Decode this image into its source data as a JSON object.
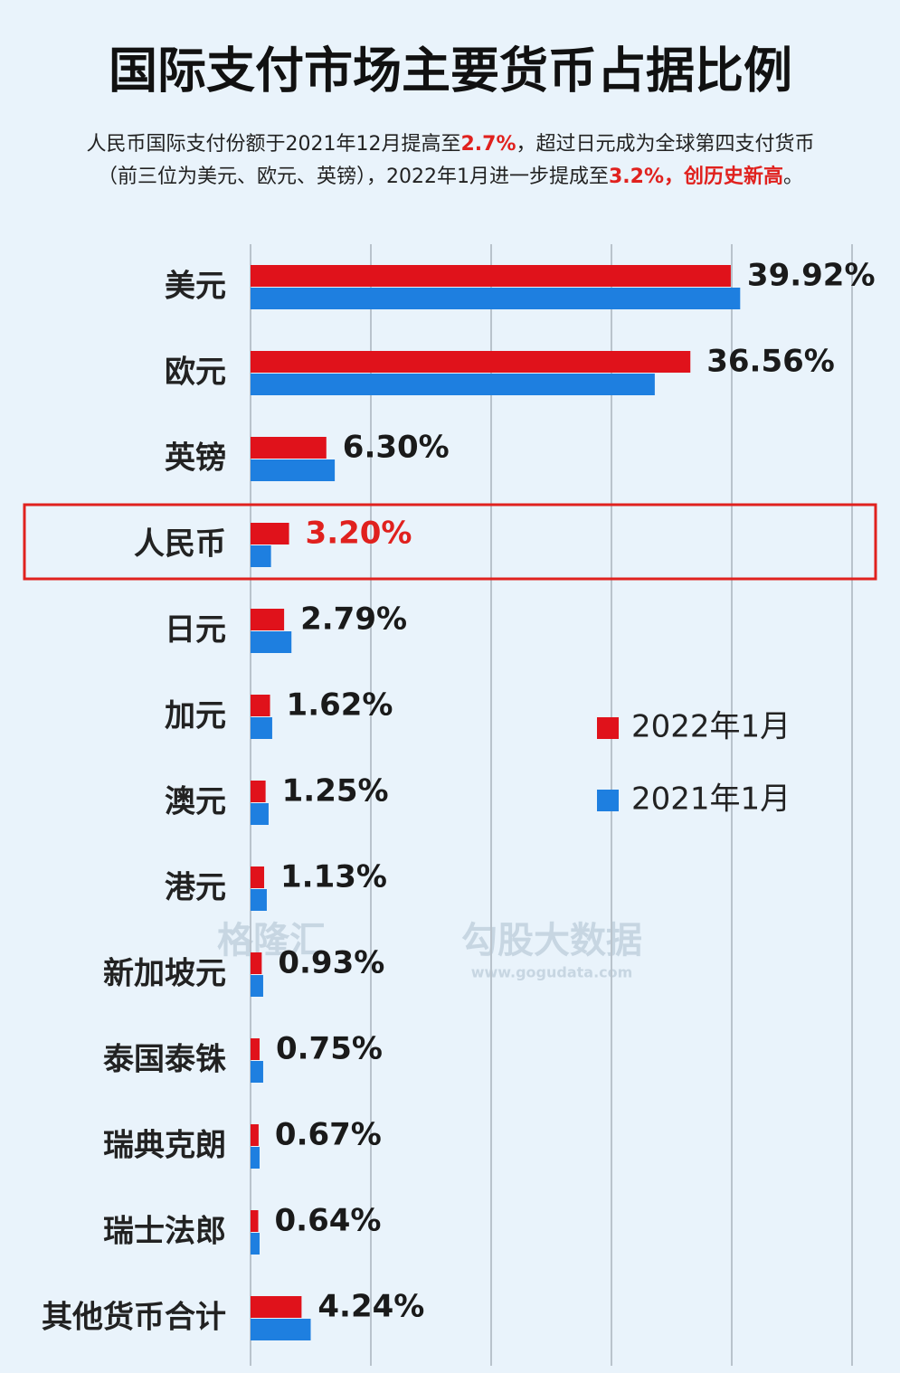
{
  "chart_data": {
    "type": "barh",
    "title": "国际支付市场主要货币占据比例",
    "subtitle_lines": [
      [
        {
          "text": "人民币国际支付份额于2021年12月提高至",
          "color": "#222222"
        },
        {
          "text": "2.7%",
          "color": "#e0211e"
        },
        {
          "text": "，超过日元成为全球第四支付货币",
          "color": "#222222"
        }
      ],
      [
        {
          "text": "（前三位为美元、欧元、英镑），2022年1月进一步提成至",
          "color": "#222222"
        },
        {
          "text": "3.2%，创历史新高",
          "color": "#e0211e"
        },
        {
          "text": "。",
          "color": "#222222"
        }
      ]
    ],
    "categories": [
      "美元",
      "欧元",
      "英镑",
      "人民币",
      "日元",
      "加元",
      "澳元",
      "港元",
      "新加坡元",
      "泰国泰铢",
      "瑞典克朗",
      "瑞士法郎",
      "其他货币合计"
    ],
    "series": [
      {
        "name": "2022年1月",
        "color": "#e0121b",
        "values": [
          39.92,
          36.56,
          6.3,
          3.2,
          2.79,
          1.62,
          1.25,
          1.13,
          0.93,
          0.75,
          0.67,
          0.64,
          4.24
        ],
        "value_labels": [
          "39.92%",
          "36.56%",
          "6.30%",
          "3.20%",
          "2.79%",
          "1.62%",
          "1.25%",
          "1.13%",
          "0.93%",
          "0.75%",
          "0.67%",
          "0.64%",
          "4.24%"
        ]
      },
      {
        "name": "2021年1月",
        "color": "#1e7fe0",
        "values": [
          40.7,
          33.6,
          7.0,
          1.7,
          3.4,
          1.8,
          1.5,
          1.35,
          1.05,
          1.05,
          0.75,
          0.75,
          5.0
        ]
      }
    ],
    "highlight_index": 3,
    "highlight_color": "#e0211e",
    "xlim": [
      0,
      50
    ],
    "xticks": [
      0,
      10,
      20,
      30,
      40,
      50
    ],
    "grid": true,
    "watermark": [
      "格隆汇",
      "勾股大数据",
      "www.gogudata.com"
    ]
  }
}
